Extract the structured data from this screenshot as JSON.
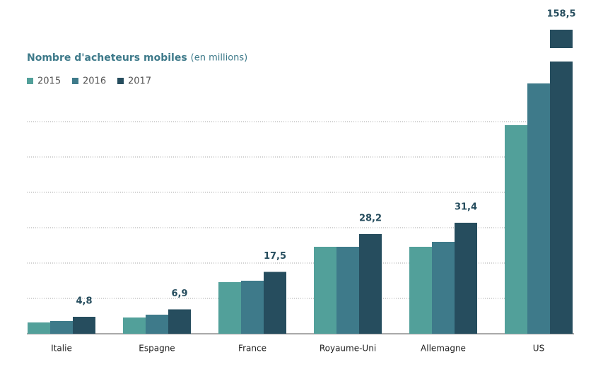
{
  "chart_data": {
    "type": "bar",
    "title": "Nombre d'acheteurs mobiles",
    "subtitle": "(en millions)",
    "categories": [
      "Italie",
      "Espagne",
      "France",
      "Royaume-Uni",
      "Allemagne",
      "US"
    ],
    "series": [
      {
        "name": "2015",
        "color": "#52a09a",
        "values": [
          3.2,
          4.6,
          14.6,
          24.6,
          24.6,
          59
        ]
      },
      {
        "name": "2016",
        "color": "#3e7a8a",
        "values": [
          3.6,
          5.4,
          15,
          24.6,
          26,
          70.8
        ]
      },
      {
        "name": "2017",
        "color": "#264d5e",
        "values": [
          4.8,
          6.9,
          17.5,
          28.2,
          31.4,
          158.5
        ],
        "value_labels": [
          "4,8",
          "6,9",
          "17,5",
          "28,2",
          "31,4",
          "158,5"
        ]
      }
    ],
    "ylim": [
      0,
      77
    ],
    "yticks": [
      0,
      10,
      20,
      30,
      40,
      50,
      60
    ],
    "grid": true,
    "broken_axis": true
  }
}
